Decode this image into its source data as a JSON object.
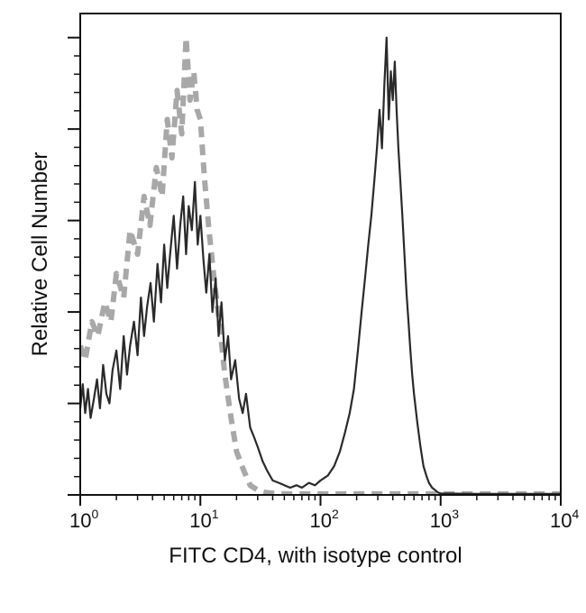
{
  "chart_data": {
    "type": "line",
    "title": "",
    "xlabel": "FITC CD4, with isotype control",
    "ylabel": "Relative Cell Number",
    "xscale": "log",
    "xlim": [
      1,
      10000
    ],
    "ylim": [
      0,
      1
    ],
    "grid": false,
    "legend": "none",
    "x_ticks": [
      {
        "base": "10",
        "exp": "0",
        "value": 1
      },
      {
        "base": "10",
        "exp": "1",
        "value": 10
      },
      {
        "base": "10",
        "exp": "2",
        "value": 100
      },
      {
        "base": "10",
        "exp": "3",
        "value": 1000
      },
      {
        "base": "10",
        "exp": "4",
        "value": 10000
      }
    ],
    "y_major_ticks": [
      0,
      0.19,
      0.38,
      0.57,
      0.76,
      0.95
    ],
    "series": [
      {
        "name": "isotype control",
        "style": "dashed",
        "color": "#a8a8a8",
        "x": [
          1,
          1.1,
          1.25,
          1.4,
          1.6,
          1.8,
          2.0,
          2.3,
          2.6,
          3.0,
          3.4,
          3.8,
          4.3,
          4.8,
          5.3,
          5.8,
          6.4,
          7.0,
          7.6,
          8.2,
          8.8,
          9.4,
          10,
          10.8,
          11.8,
          13,
          14.5,
          16,
          18,
          20,
          23,
          26,
          30,
          35,
          42,
          55,
          80,
          200,
          1000,
          10000
        ],
        "y": [
          0.31,
          0.28,
          0.36,
          0.33,
          0.4,
          0.36,
          0.46,
          0.41,
          0.55,
          0.5,
          0.62,
          0.56,
          0.68,
          0.62,
          0.78,
          0.7,
          0.84,
          0.75,
          0.95,
          0.82,
          0.88,
          0.8,
          0.78,
          0.66,
          0.55,
          0.45,
          0.35,
          0.25,
          0.16,
          0.09,
          0.05,
          0.02,
          0.01,
          0.005,
          0.003,
          0.002,
          0.002,
          0.002,
          0.002,
          0.002
        ]
      },
      {
        "name": "FITC CD4",
        "style": "solid",
        "color": "#2a2a2a",
        "x": [
          1,
          1.05,
          1.1,
          1.16,
          1.22,
          1.3,
          1.38,
          1.46,
          1.55,
          1.65,
          1.75,
          1.86,
          2.0,
          2.15,
          2.3,
          2.45,
          2.6,
          2.8,
          3.0,
          3.2,
          3.4,
          3.6,
          3.85,
          4.1,
          4.4,
          4.7,
          5.0,
          5.3,
          5.6,
          6.0,
          6.4,
          6.8,
          7.2,
          7.6,
          8.0,
          8.5,
          9.0,
          9.5,
          10,
          10.6,
          11.2,
          11.9,
          12.6,
          13.4,
          14.2,
          15,
          16,
          17,
          18,
          19.5,
          21,
          22.5,
          24,
          26,
          28,
          30,
          33,
          36,
          40,
          45,
          50,
          56,
          63,
          70,
          80,
          90,
          100,
          115,
          130,
          145,
          160,
          175,
          190,
          205,
          220,
          235,
          250,
          265,
          280,
          295,
          310,
          325,
          340,
          355,
          370,
          385,
          400,
          415,
          430,
          445,
          460,
          480,
          500,
          520,
          540,
          560,
          580,
          600,
          640,
          680,
          720,
          760,
          800,
          850,
          900,
          950,
          1000,
          2000,
          10000
        ],
        "y": [
          0.18,
          0.23,
          0.17,
          0.22,
          0.16,
          0.2,
          0.24,
          0.18,
          0.27,
          0.21,
          0.19,
          0.26,
          0.3,
          0.22,
          0.33,
          0.25,
          0.31,
          0.36,
          0.29,
          0.41,
          0.33,
          0.39,
          0.44,
          0.36,
          0.48,
          0.4,
          0.52,
          0.43,
          0.5,
          0.58,
          0.47,
          0.56,
          0.62,
          0.5,
          0.6,
          0.55,
          0.65,
          0.52,
          0.58,
          0.49,
          0.42,
          0.5,
          0.38,
          0.45,
          0.33,
          0.4,
          0.28,
          0.33,
          0.24,
          0.28,
          0.2,
          0.17,
          0.21,
          0.14,
          0.12,
          0.1,
          0.07,
          0.05,
          0.03,
          0.025,
          0.02,
          0.015,
          0.02,
          0.015,
          0.025,
          0.02,
          0.03,
          0.04,
          0.06,
          0.09,
          0.13,
          0.17,
          0.22,
          0.3,
          0.38,
          0.45,
          0.52,
          0.58,
          0.65,
          0.72,
          0.8,
          0.72,
          0.85,
          0.95,
          0.78,
          0.88,
          0.82,
          0.9,
          0.8,
          0.72,
          0.66,
          0.58,
          0.5,
          0.42,
          0.36,
          0.3,
          0.25,
          0.21,
          0.15,
          0.1,
          0.06,
          0.04,
          0.025,
          0.015,
          0.01,
          0.005,
          0.003,
          0.002,
          0.002
        ]
      }
    ]
  }
}
